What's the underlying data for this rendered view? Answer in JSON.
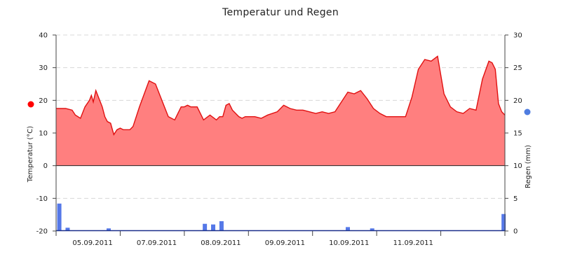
{
  "chart_data": {
    "type": "area",
    "title": "Temperatur und Regen",
    "y_left": {
      "label": "Temperatur (°C)",
      "min": -20,
      "max": 40,
      "ticks": [
        -20,
        -10,
        0,
        10,
        20,
        30,
        40
      ],
      "marker_color": "#ff0000"
    },
    "y_right": {
      "label": "Regen (mm)",
      "min": 0,
      "max": 30,
      "ticks": [
        0,
        5,
        10,
        15,
        20,
        25,
        30
      ],
      "marker_color": "#4f7de0"
    },
    "x_range": [
      0,
      7
    ],
    "x_ticks": [
      {
        "pos": 0.0,
        "label": ""
      },
      {
        "pos": 1.0,
        "label": "05.09.2011"
      },
      {
        "pos": 2.0,
        "label": "07.09.2011"
      },
      {
        "pos": 3.0,
        "label": "08.09.2011"
      },
      {
        "pos": 4.0,
        "label": "09.09.2011"
      },
      {
        "pos": 5.0,
        "label": "10.09.2011"
      },
      {
        "pos": 6.0,
        "label": "11.09.2011"
      },
      {
        "pos": 7.0,
        "label": ""
      }
    ],
    "grid": {
      "horizontal_dashed": true,
      "color": "#d8d8d8"
    },
    "series": [
      {
        "name": "Temperatur",
        "type": "area",
        "axis": "left",
        "line_color": "#e01010",
        "fill_color": "#ff7f7f",
        "x": [
          0.0,
          0.15,
          0.25,
          0.3,
          0.38,
          0.45,
          0.52,
          0.55,
          0.58,
          0.62,
          0.68,
          0.72,
          0.76,
          0.8,
          0.85,
          0.9,
          0.95,
          1.0,
          1.05,
          1.1,
          1.15,
          1.2,
          1.3,
          1.45,
          1.55,
          1.65,
          1.75,
          1.85,
          1.95,
          2.0,
          2.05,
          2.1,
          2.2,
          2.3,
          2.4,
          2.5,
          2.55,
          2.6,
          2.65,
          2.7,
          2.75,
          2.8,
          2.85,
          2.9,
          2.95,
          3.0,
          3.05,
          3.1,
          3.2,
          3.3,
          3.45,
          3.55,
          3.65,
          3.75,
          3.85,
          3.95,
          4.05,
          4.15,
          4.25,
          4.35,
          4.45,
          4.55,
          4.65,
          4.75,
          4.85,
          4.95,
          5.05,
          5.15,
          5.25,
          5.35,
          5.45,
          5.55,
          5.65,
          5.75,
          5.85,
          5.95,
          6.05,
          6.15,
          6.25,
          6.35,
          6.45,
          6.55,
          6.65,
          6.75,
          6.8,
          6.85,
          6.9,
          6.95,
          7.0
        ],
        "values": [
          17.5,
          17.5,
          17.0,
          15.5,
          14.5,
          18.0,
          20.0,
          21.5,
          19.5,
          23.0,
          20.0,
          18.0,
          15.0,
          13.5,
          13.0,
          9.5,
          11.0,
          11.5,
          11.0,
          11.0,
          11.0,
          12.0,
          18.0,
          26.0,
          25.0,
          20.0,
          15.0,
          14.0,
          18.0,
          18.0,
          18.5,
          18.0,
          18.0,
          14.0,
          15.5,
          14.0,
          15.0,
          15.0,
          18.5,
          19.0,
          17.0,
          16.0,
          15.0,
          14.5,
          15.0,
          15.0,
          15.0,
          15.0,
          14.5,
          15.5,
          16.5,
          18.5,
          17.5,
          17.0,
          17.0,
          16.5,
          16.0,
          16.5,
          16.0,
          16.5,
          19.5,
          22.5,
          22.0,
          23.0,
          20.5,
          17.5,
          16.0,
          15.0,
          15.0,
          15.0,
          15.0,
          21.0,
          29.5,
          32.5,
          32.0,
          33.5,
          22.0,
          18.0,
          16.5,
          16.0,
          17.5,
          17.0,
          26.5,
          32.0,
          31.5,
          29.5,
          19.0,
          16.5,
          15.5
        ]
      },
      {
        "name": "Regen",
        "type": "bar",
        "axis": "right",
        "color": "#5578e8",
        "baseline_color": "#1a2f8a",
        "x": [
          0.05,
          0.18,
          0.82,
          2.32,
          2.45,
          2.58,
          4.55,
          4.93,
          6.98
        ],
        "values": [
          4.2,
          0.5,
          0.4,
          1.1,
          1.0,
          1.5,
          0.6,
          0.4,
          2.6
        ]
      }
    ]
  }
}
